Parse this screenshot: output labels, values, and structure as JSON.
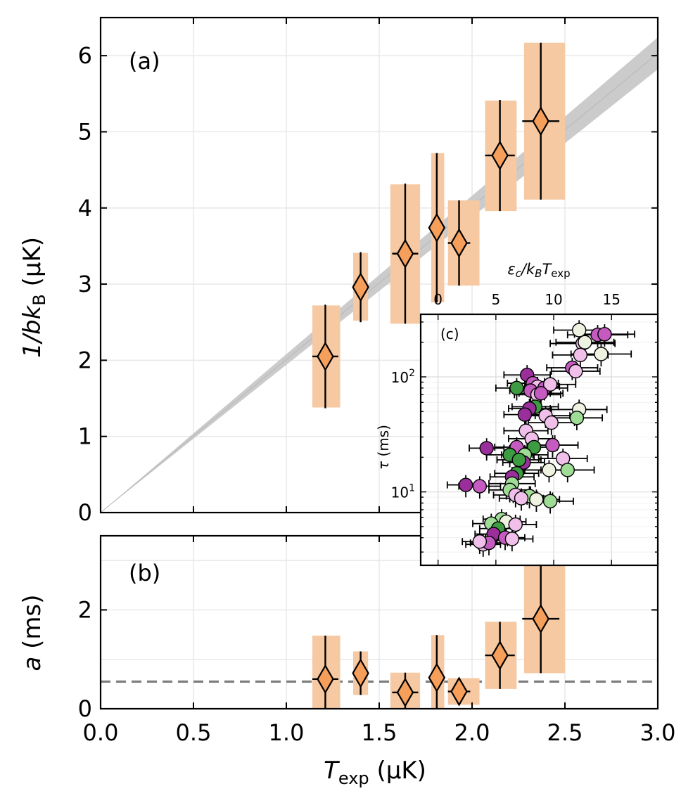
{
  "chart_data": [
    {
      "panel": "(a)",
      "type": "scatter",
      "xlabel_main": "T",
      "xlabel_sub": "exp",
      "xlabel_unit": " (μK)",
      "ylabel_main": "1/bk",
      "ylabel_sub": "B",
      "ylabel_unit": " (μK)",
      "xlim": [
        0,
        3.0
      ],
      "ylim": [
        0,
        6.5
      ],
      "xticks": [
        "0.0",
        "0.5",
        "1.0",
        "1.5",
        "2.0",
        "2.5",
        "3.0"
      ],
      "yticks": [
        "0",
        "1",
        "2",
        "3",
        "4",
        "5",
        "6"
      ],
      "grid": true,
      "marker_color": "#f59f5b",
      "box_color": "#f6c9a3",
      "fit_band": {
        "slope_low": 1.94,
        "slope_high": 2.08,
        "color": "#c8c8c8"
      },
      "points": [
        {
          "x": 1.21,
          "y": 2.05,
          "yerr": 0.68,
          "xerr": 0.07,
          "box_x": [
            1.14,
            1.29
          ],
          "box_y": [
            1.38,
            2.72
          ]
        },
        {
          "x": 1.4,
          "y": 2.96,
          "yerr": 0.46,
          "xerr": 0.03,
          "box_x": [
            1.36,
            1.44
          ],
          "box_y": [
            2.52,
            3.41
          ]
        },
        {
          "x": 1.64,
          "y": 3.4,
          "yerr": 0.92,
          "xerr": 0.07,
          "box_x": [
            1.56,
            1.72
          ],
          "box_y": [
            2.48,
            4.31
          ]
        },
        {
          "x": 1.81,
          "y": 3.74,
          "yerr": 0.98,
          "xerr": 0.03,
          "box_x": [
            1.78,
            1.85
          ],
          "box_y": [
            2.76,
            4.72
          ]
        },
        {
          "x": 1.93,
          "y": 3.54,
          "yerr": 0.56,
          "xerr": 0.06,
          "box_x": [
            1.87,
            2.04
          ],
          "box_y": [
            2.98,
            4.1
          ]
        },
        {
          "x": 2.15,
          "y": 4.69,
          "yerr": 0.73,
          "xerr": 0.08,
          "box_x": [
            2.07,
            2.24
          ],
          "box_y": [
            3.96,
            5.41
          ]
        },
        {
          "x": 2.37,
          "y": 5.14,
          "yerr": 1.03,
          "xerr": 0.1,
          "box_x": [
            2.28,
            2.5
          ],
          "box_y": [
            4.11,
            6.17
          ]
        }
      ]
    },
    {
      "panel": "(b)",
      "type": "scatter",
      "xlabel_main": "T",
      "xlabel_sub": "exp",
      "xlabel_unit": " (μK)",
      "ylabel_main": "a",
      "ylabel_unit": " (ms)",
      "xlim": [
        0,
        3.0
      ],
      "ylim": [
        0,
        3.5
      ],
      "xticks": [
        "0.0",
        "0.5",
        "1.0",
        "1.5",
        "2.0",
        "2.5",
        "3.0"
      ],
      "yticks": [
        "0",
        "2"
      ],
      "grid": true,
      "hline": {
        "y": 0.55,
        "style": "dashed",
        "color": "#808080"
      },
      "points": [
        {
          "x": 1.21,
          "y": 0.6,
          "yerr": 0.88,
          "xerr": 0.07,
          "box_x": [
            1.14,
            1.29
          ],
          "box_y": [
            0.0,
            1.48
          ]
        },
        {
          "x": 1.4,
          "y": 0.72,
          "yerr": 0.44,
          "xerr": 0.03,
          "box_x": [
            1.36,
            1.44
          ],
          "box_y": [
            0.28,
            1.16
          ]
        },
        {
          "x": 1.64,
          "y": 0.33,
          "yerr": 0.4,
          "xerr": 0.07,
          "box_x": [
            1.56,
            1.72
          ],
          "box_y": [
            0.0,
            0.73
          ]
        },
        {
          "x": 1.81,
          "y": 0.63,
          "yerr": 0.86,
          "xerr": 0.03,
          "box_x": [
            1.78,
            1.85
          ],
          "box_y": [
            0.0,
            1.49
          ]
        },
        {
          "x": 1.93,
          "y": 0.35,
          "yerr": 0.27,
          "xerr": 0.06,
          "box_x": [
            1.87,
            2.04
          ],
          "box_y": [
            0.08,
            0.62
          ]
        },
        {
          "x": 2.15,
          "y": 1.08,
          "yerr": 0.68,
          "xerr": 0.08,
          "box_x": [
            2.07,
            2.24
          ],
          "box_y": [
            0.4,
            1.76
          ]
        },
        {
          "x": 2.37,
          "y": 1.82,
          "yerr": 1.1,
          "xerr": 0.1,
          "box_x": [
            2.28,
            2.5
          ],
          "box_y": [
            0.72,
            3.5
          ]
        }
      ]
    },
    {
      "panel": "(c)",
      "type": "scatter",
      "xlabel_main": "ε",
      "xlabel_c": "c",
      "xlabel_mid": "/k",
      "xlabel_b": "B",
      "xlabel_t": "T",
      "xlabel_sub": "exp",
      "ylabel_main": "τ",
      "ylabel_unit": " (ms)",
      "xlim": [
        -1.5,
        19
      ],
      "ylog": true,
      "ylim": [
        2.3,
        350
      ],
      "xticks": [
        "0",
        "5",
        "10",
        "15"
      ],
      "ytick_base": "10",
      "ytick_exps": [
        "1",
        "2"
      ],
      "grid": true,
      "palette": {
        "dark_purple": "#9a2f9c",
        "purple": "#c55bc0",
        "light_pink": "#f0c0ea",
        "cream": "#eef2e1",
        "light_green": "#9fdc96",
        "green": "#3d9b41"
      },
      "points": [
        {
          "x": 12.2,
          "y": 255,
          "xerr": 2.2,
          "c": "cream"
        },
        {
          "x": 13.8,
          "y": 232,
          "xerr": 2.6,
          "c": "purple"
        },
        {
          "x": 14.4,
          "y": 235,
          "xerr": 2.6,
          "c": "purple"
        },
        {
          "x": 12.5,
          "y": 195,
          "xerr": 2.8,
          "c": "light_pink"
        },
        {
          "x": 12.7,
          "y": 200,
          "xerr": 2.5,
          "c": "cream"
        },
        {
          "x": 14.1,
          "y": 158,
          "xerr": 2.6,
          "c": "cream"
        },
        {
          "x": 12.3,
          "y": 155,
          "xerr": 2.4,
          "c": "light_pink"
        },
        {
          "x": 11.6,
          "y": 120,
          "xerr": 2.2,
          "c": "purple"
        },
        {
          "x": 11.9,
          "y": 112,
          "xerr": 2.1,
          "c": "light_pink"
        },
        {
          "x": 7.7,
          "y": 104,
          "xerr": 2.0,
          "c": "dark_purple"
        },
        {
          "x": 8.2,
          "y": 88,
          "xerr": 2.2,
          "c": "purple"
        },
        {
          "x": 8.6,
          "y": 82,
          "xerr": 1.9,
          "c": "light_pink"
        },
        {
          "x": 9.2,
          "y": 80,
          "xerr": 2.0,
          "c": "purple"
        },
        {
          "x": 9.7,
          "y": 86,
          "xerr": 2.2,
          "c": "light_pink"
        },
        {
          "x": 8.0,
          "y": 76,
          "xerr": 1.8,
          "c": "purple"
        },
        {
          "x": 6.8,
          "y": 80,
          "xerr": 1.8,
          "c": "green"
        },
        {
          "x": 8.6,
          "y": 70,
          "xerr": 2.0,
          "c": "light_pink"
        },
        {
          "x": 8.9,
          "y": 72,
          "xerr": 1.9,
          "c": "purple"
        },
        {
          "x": 12.2,
          "y": 52,
          "xerr": 2.4,
          "c": "cream"
        },
        {
          "x": 12.0,
          "y": 44,
          "xerr": 2.2,
          "c": "light_green"
        },
        {
          "x": 8.4,
          "y": 55,
          "xerr": 2.0,
          "c": "green"
        },
        {
          "x": 7.9,
          "y": 53,
          "xerr": 1.8,
          "c": "dark_purple"
        },
        {
          "x": 7.5,
          "y": 47,
          "xerr": 1.8,
          "c": "dark_purple"
        },
        {
          "x": 9.3,
          "y": 46,
          "xerr": 2.1,
          "c": "light_pink"
        },
        {
          "x": 9.8,
          "y": 40,
          "xerr": 2.0,
          "c": "light_pink"
        },
        {
          "x": 7.6,
          "y": 34,
          "xerr": 1.9,
          "c": "light_pink"
        },
        {
          "x": 4.2,
          "y": 24,
          "xerr": 1.5,
          "c": "dark_purple"
        },
        {
          "x": 8.1,
          "y": 29,
          "xerr": 2.0,
          "c": "light_pink"
        },
        {
          "x": 8.3,
          "y": 24.5,
          "xerr": 2.0,
          "c": "green"
        },
        {
          "x": 6.8,
          "y": 24.5,
          "xerr": 1.9,
          "c": "purple"
        },
        {
          "x": 9.9,
          "y": 25.5,
          "xerr": 2.2,
          "c": "purple"
        },
        {
          "x": 6.2,
          "y": 21,
          "xerr": 2.0,
          "c": "green"
        },
        {
          "x": 7.5,
          "y": 21,
          "xerr": 2.0,
          "c": "light_green"
        },
        {
          "x": 10.8,
          "y": 19.5,
          "xerr": 2.1,
          "c": "light_pink"
        },
        {
          "x": 7.4,
          "y": 18,
          "xerr": 1.8,
          "c": "dark_purple"
        },
        {
          "x": 7.0,
          "y": 19,
          "xerr": 1.9,
          "c": "green"
        },
        {
          "x": 11.2,
          "y": 15.5,
          "xerr": 2.3,
          "c": "light_green"
        },
        {
          "x": 9.6,
          "y": 15.5,
          "xerr": 2.1,
          "c": "cream"
        },
        {
          "x": 6.8,
          "y": 14.5,
          "xerr": 1.9,
          "c": "green"
        },
        {
          "x": 6.4,
          "y": 13.5,
          "xerr": 1.9,
          "c": "dark_purple"
        },
        {
          "x": 6.4,
          "y": 11.8,
          "xerr": 2.0,
          "c": "light_green"
        },
        {
          "x": 2.4,
          "y": 11.5,
          "xerr": 1.6,
          "c": "dark_purple"
        },
        {
          "x": 3.6,
          "y": 11.2,
          "xerr": 1.8,
          "c": "purple"
        },
        {
          "x": 6.2,
          "y": 10.4,
          "xerr": 1.8,
          "c": "light_green"
        },
        {
          "x": 7.9,
          "y": 9.2,
          "xerr": 2.0,
          "c": "light_green"
        },
        {
          "x": 6.7,
          "y": 9.4,
          "xerr": 1.9,
          "c": "light_pink"
        },
        {
          "x": 7.2,
          "y": 8.8,
          "xerr": 1.9,
          "c": "light_pink"
        },
        {
          "x": 8.5,
          "y": 8.6,
          "xerr": 2.0,
          "c": "cream"
        },
        {
          "x": 9.7,
          "y": 8.3,
          "xerr": 2.0,
          "c": "light_green"
        },
        {
          "x": 5.5,
          "y": 5.8,
          "xerr": 1.6,
          "c": "light_green"
        },
        {
          "x": 5.9,
          "y": 5.5,
          "xerr": 1.7,
          "c": "cream"
        },
        {
          "x": 6.7,
          "y": 5.2,
          "xerr": 1.8,
          "c": "light_pink"
        },
        {
          "x": 4.6,
          "y": 5.3,
          "xerr": 1.6,
          "c": "light_green"
        },
        {
          "x": 5.2,
          "y": 4.8,
          "xerr": 1.6,
          "c": "green"
        },
        {
          "x": 4.8,
          "y": 4.3,
          "xerr": 1.6,
          "c": "dark_purple"
        },
        {
          "x": 5.8,
          "y": 4.0,
          "xerr": 1.7,
          "c": "purple"
        },
        {
          "x": 6.4,
          "y": 3.9,
          "xerr": 1.8,
          "c": "light_pink"
        },
        {
          "x": 3.9,
          "y": 3.5,
          "xerr": 1.5,
          "c": "light_pink"
        },
        {
          "x": 4.4,
          "y": 3.6,
          "xerr": 1.6,
          "c": "purple"
        },
        {
          "x": 3.6,
          "y": 3.7,
          "xerr": 1.5,
          "c": "light_pink"
        }
      ]
    }
  ]
}
